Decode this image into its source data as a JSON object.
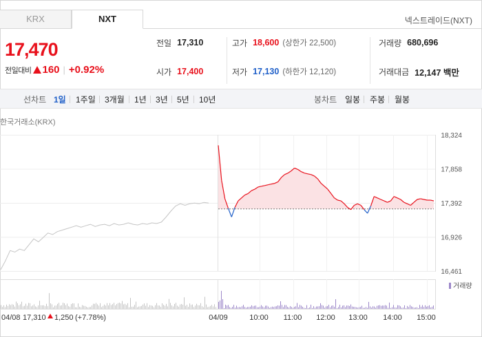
{
  "tabs": [
    {
      "label": "KRX",
      "active": false
    },
    {
      "label": "NXT",
      "active": true
    }
  ],
  "market_label": "넥스트레이드(NXT)",
  "price": {
    "current": "17,470",
    "change_label": "전일대비",
    "change_value": "160",
    "change_pct": "+0.92%",
    "color": "#e8101b"
  },
  "stats": {
    "prev_close": {
      "label": "전일",
      "value": "17,310"
    },
    "open": {
      "label": "시가",
      "value": "17,400"
    },
    "high": {
      "label": "고가",
      "value": "18,600",
      "sub": "(상한가 22,500)"
    },
    "low": {
      "label": "저가",
      "value": "17,130",
      "sub": "(하한가 12,120)"
    },
    "volume": {
      "label": "거래량",
      "value": "680,696"
    },
    "amount": {
      "label": "거래대금",
      "value": "12,147 백만"
    }
  },
  "toolbar": {
    "line_title": "선차트",
    "line_items": [
      "1일",
      "1주일",
      "3개월",
      "1년",
      "3년",
      "5년",
      "10년"
    ],
    "selected": "1일",
    "candle_title": "봉차트",
    "candle_items": [
      "일봉",
      "주봉",
      "월봉"
    ]
  },
  "chart_caption": "한국거래소(KRX)",
  "footer": {
    "prev_date": "04/08",
    "prev_close": "17,310",
    "prev_change": "1,250",
    "prev_pct": "(+7.78%)"
  },
  "chart_data": {
    "type": "line",
    "y_ticks": [
      "18,324",
      "17,858",
      "17,392",
      "16,926",
      "16,461"
    ],
    "ylim": [
      16461,
      18324
    ],
    "baseline": 17310,
    "x_ticks": [
      "04/09",
      "10:00",
      "11:00",
      "12:00",
      "13:00",
      "14:00",
      "15:00"
    ],
    "volume_legend": "거래량",
    "colors": {
      "up": "#e8101b",
      "down": "#1f5fc8",
      "fill": "#fbe2e4",
      "prev": "#c4c4c4",
      "volume": "#9b86c9",
      "prev_volume": "#c4c4c4"
    },
    "prev_series": [
      16480,
      16600,
      16740,
      16720,
      16760,
      16740,
      16820,
      16900,
      16860,
      16920,
      16980,
      16960,
      17000,
      17020,
      17040,
      17060,
      17080,
      17060,
      17080,
      17100,
      17070,
      17090,
      17100,
      17080,
      17110,
      17090,
      17100,
      17120,
      17100,
      17090,
      17110,
      17100,
      17120,
      17110,
      17130,
      17200,
      17280,
      17350,
      17380,
      17360,
      17380,
      17390,
      17380,
      17400,
      17390
    ],
    "series": [
      18180,
      17700,
      17450,
      17320,
      17200,
      17330,
      17420,
      17460,
      17500,
      17520,
      17560,
      17580,
      17610,
      17620,
      17630,
      17640,
      17650,
      17660,
      17680,
      17740,
      17780,
      17800,
      17830,
      17870,
      17850,
      17820,
      17800,
      17790,
      17780,
      17760,
      17720,
      17660,
      17620,
      17580,
      17520,
      17460,
      17430,
      17420,
      17380,
      17330,
      17300,
      17360,
      17380,
      17360,
      17300,
      17250,
      17350,
      17480,
      17460,
      17440,
      17420,
      17400,
      17420,
      17480,
      17460,
      17440,
      17400,
      17380,
      17360,
      17400,
      17440,
      17450,
      17440,
      17430,
      17430,
      17420
    ]
  }
}
